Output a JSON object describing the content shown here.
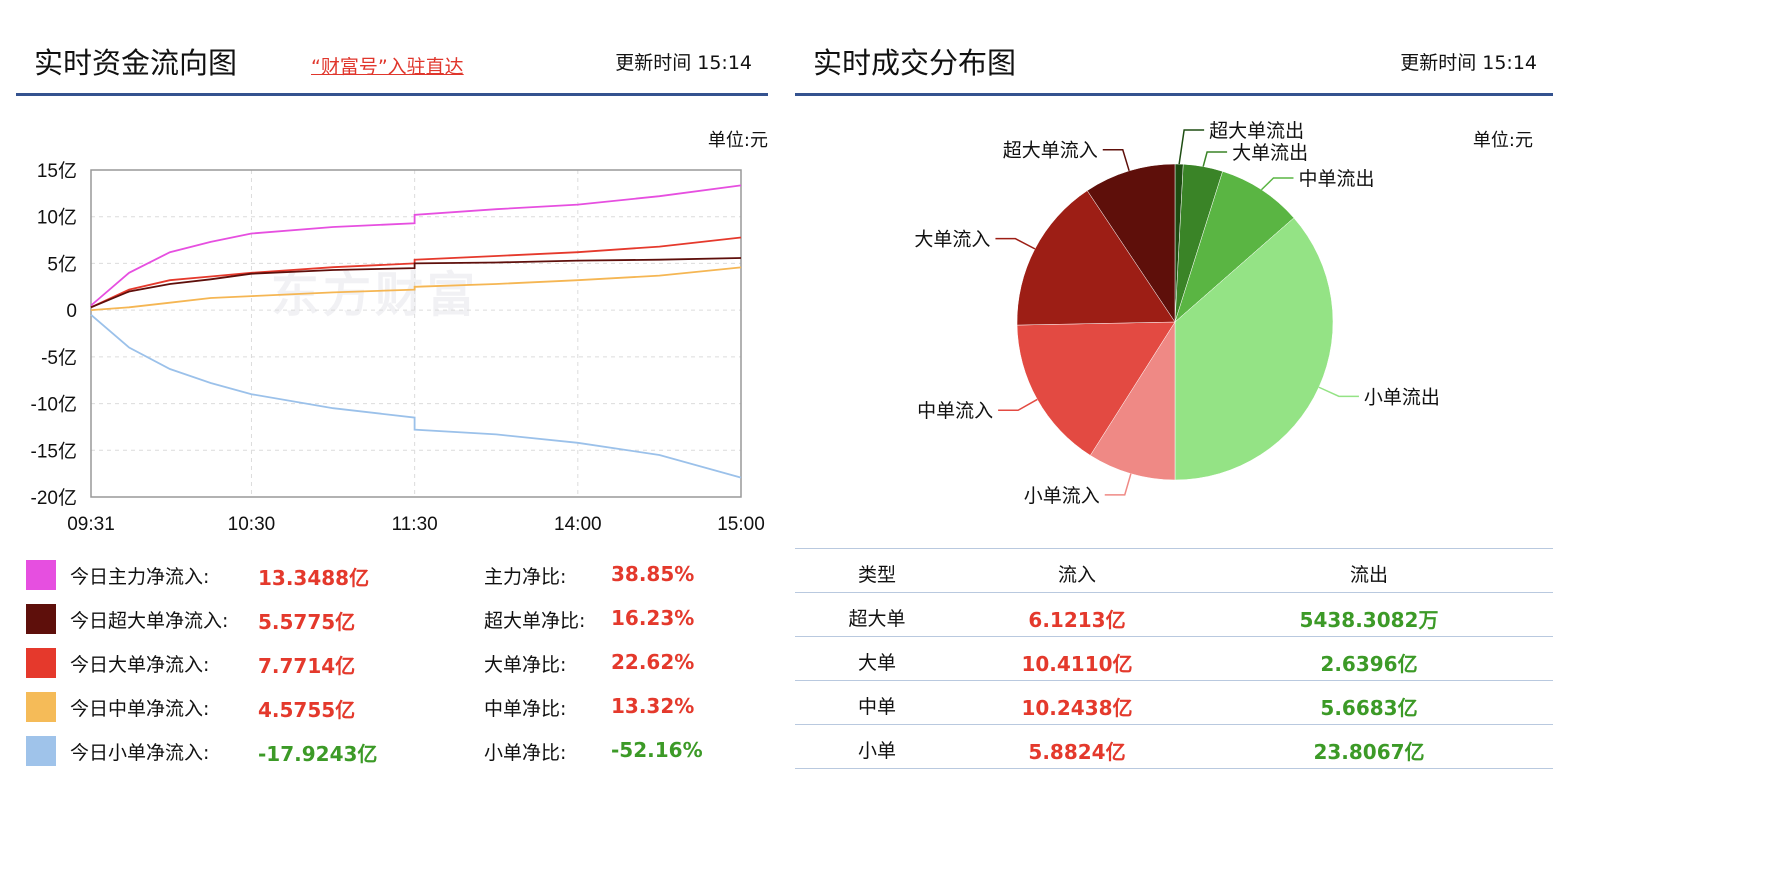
{
  "left": {
    "title": "实时资金流向图",
    "link": "“财富号”入驻直达",
    "updated": "更新时间 15:14",
    "unit": "单位:元",
    "watermark": "东方财富"
  },
  "right": {
    "title": "实时成交分布图",
    "updated": "更新时间 15:14",
    "unit": "单位:元"
  },
  "legend": [
    {
      "label": "今日主力净流入:",
      "value": "13.3488亿",
      "ratio_label": "主力净比:",
      "ratio": "38.85%",
      "color": "#e64fe0",
      "tone": "red"
    },
    {
      "label": "今日超大单净流入:",
      "value": "5.5775亿",
      "ratio_label": "超大单净比:",
      "ratio": "16.23%",
      "color": "#5e0f0b",
      "tone": "red"
    },
    {
      "label": "今日大单净流入:",
      "value": "7.7714亿",
      "ratio_label": "大单净比:",
      "ratio": "22.62%",
      "color": "#e5392c",
      "tone": "red"
    },
    {
      "label": "今日中单净流入:",
      "value": "4.5755亿",
      "ratio_label": "中单净比:",
      "ratio": "13.32%",
      "color": "#f5bb58",
      "tone": "red"
    },
    {
      "label": "今日小单净流入:",
      "value": "-17.9243亿",
      "ratio_label": "小单净比:",
      "ratio": "-52.16%",
      "color": "#9fc3ea",
      "tone": "grn"
    }
  ],
  "table": {
    "headers": [
      "类型",
      "流入",
      "流出"
    ],
    "rows": [
      [
        "超大单",
        "6.1213亿",
        "5438.3082万"
      ],
      [
        "大单",
        "10.4110亿",
        "2.6396亿"
      ],
      [
        "中单",
        "10.2438亿",
        "5.6683亿"
      ],
      [
        "小单",
        "5.8824亿",
        "23.8067亿"
      ]
    ]
  },
  "chart_data": [
    {
      "type": "line",
      "ylim": [
        -20,
        15
      ],
      "yticks": [
        "15亿",
        "10亿",
        "5亿",
        "0",
        "-5亿",
        "-10亿",
        "-15亿",
        "-20亿"
      ],
      "ytick_values": [
        15,
        10,
        5,
        0,
        -5,
        -10,
        -15,
        -20
      ],
      "xticks": [
        "09:31",
        "10:30",
        "11:30",
        "14:00",
        "15:00"
      ],
      "grid": true,
      "x": [
        "09:31",
        "09:45",
        "10:00",
        "10:15",
        "10:30",
        "11:00",
        "11:30",
        "13:00",
        "13:30",
        "14:00",
        "14:30",
        "15:00"
      ],
      "series": [
        {
          "key": "main",
          "color": "#e64fe0",
          "values": [
            0.5,
            4,
            6.2,
            7.3,
            8.2,
            8.9,
            9.3,
            10.2,
            10.8,
            11.3,
            12.2,
            13.35
          ]
        },
        {
          "key": "large",
          "color": "#e5392c",
          "values": [
            0.3,
            2.2,
            3.2,
            3.6,
            4.0,
            4.6,
            5.0,
            5.4,
            5.8,
            6.2,
            6.8,
            7.77
          ]
        },
        {
          "key": "super",
          "color": "#5e0f0b",
          "values": [
            0.3,
            2.0,
            2.8,
            3.3,
            3.9,
            4.3,
            4.5,
            5.0,
            5.1,
            5.3,
            5.4,
            5.58
          ]
        },
        {
          "key": "medium",
          "color": "#f5b653",
          "values": [
            0,
            0.3,
            0.8,
            1.3,
            1.5,
            1.9,
            2.2,
            2.5,
            2.8,
            3.2,
            3.7,
            4.58
          ]
        },
        {
          "key": "small",
          "color": "#9bc1ea",
          "values": [
            -0.5,
            -4,
            -6.3,
            -7.8,
            -9.0,
            -10.5,
            -11.5,
            -12.8,
            -13.3,
            -14.2,
            -15.5,
            -17.92
          ]
        }
      ]
    },
    {
      "type": "pie",
      "unit": "亿",
      "slices": [
        {
          "label": "超大单流出",
          "value": 0.5438,
          "color": "#1e4d12"
        },
        {
          "label": "大单流出",
          "value": 2.6396,
          "color": "#3a8427"
        },
        {
          "label": "中单流出",
          "value": 5.6683,
          "color": "#5ab543"
        },
        {
          "label": "小单流出",
          "value": 23.8067,
          "color": "#94e385"
        },
        {
          "label": "小单流入",
          "value": 5.8824,
          "color": "#ef8985"
        },
        {
          "label": "中单流入",
          "value": 10.2438,
          "color": "#e34a42"
        },
        {
          "label": "大单流入",
          "value": 10.411,
          "color": "#9d1e15"
        },
        {
          "label": "超大单流入",
          "value": 6.1213,
          "color": "#5e0f0a"
        }
      ]
    }
  ]
}
